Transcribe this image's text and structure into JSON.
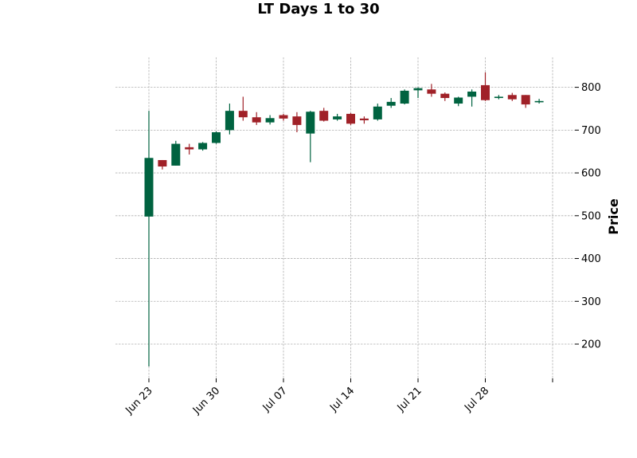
{
  "chart_data": {
    "type": "candlestick",
    "title": "LT Days 1 to 30",
    "ylabel": "Price",
    "xlabel": "",
    "ylim": [
      120,
      870
    ],
    "yticks": [
      200,
      300,
      400,
      500,
      600,
      700,
      800
    ],
    "xticks": [
      {
        "label": "Jun 23",
        "index": 0
      },
      {
        "label": "Jun 30",
        "index": 5
      },
      {
        "label": "Jul 07",
        "index": 10
      },
      {
        "label": "Jul 14",
        "index": 15
      },
      {
        "label": "Jul 21",
        "index": 20
      },
      {
        "label": "Jul 28",
        "index": 25
      },
      {
        "label": "",
        "index": 30
      }
    ],
    "grid": true,
    "colors": {
      "up": "#006340",
      "down": "#a02128"
    },
    "candles": [
      {
        "open": 498,
        "high": 745,
        "low": 148,
        "close": 635
      },
      {
        "open": 630,
        "high": 630,
        "low": 608,
        "close": 615
      },
      {
        "open": 617,
        "high": 675,
        "low": 617,
        "close": 668
      },
      {
        "open": 660,
        "high": 668,
        "low": 643,
        "close": 655
      },
      {
        "open": 655,
        "high": 672,
        "low": 652,
        "close": 670
      },
      {
        "open": 670,
        "high": 697,
        "low": 668,
        "close": 695
      },
      {
        "open": 700,
        "high": 762,
        "low": 690,
        "close": 745
      },
      {
        "open": 745,
        "high": 778,
        "low": 722,
        "close": 730
      },
      {
        "open": 730,
        "high": 742,
        "low": 712,
        "close": 718
      },
      {
        "open": 718,
        "high": 735,
        "low": 713,
        "close": 728
      },
      {
        "open": 735,
        "high": 738,
        "low": 722,
        "close": 727
      },
      {
        "open": 732,
        "high": 742,
        "low": 695,
        "close": 712
      },
      {
        "open": 692,
        "high": 745,
        "low": 625,
        "close": 743
      },
      {
        "open": 745,
        "high": 752,
        "low": 720,
        "close": 722
      },
      {
        "open": 725,
        "high": 738,
        "low": 722,
        "close": 732
      },
      {
        "open": 738,
        "high": 740,
        "low": 712,
        "close": 715
      },
      {
        "open": 727,
        "high": 732,
        "low": 715,
        "close": 723
      },
      {
        "open": 725,
        "high": 762,
        "low": 722,
        "close": 755
      },
      {
        "open": 757,
        "high": 775,
        "low": 752,
        "close": 766
      },
      {
        "open": 762,
        "high": 795,
        "low": 760,
        "close": 792
      },
      {
        "open": 793,
        "high": 800,
        "low": 775,
        "close": 798
      },
      {
        "open": 795,
        "high": 808,
        "low": 778,
        "close": 785
      },
      {
        "open": 785,
        "high": 788,
        "low": 768,
        "close": 775
      },
      {
        "open": 762,
        "high": 778,
        "low": 756,
        "close": 776
      },
      {
        "open": 778,
        "high": 795,
        "low": 755,
        "close": 790
      },
      {
        "open": 805,
        "high": 835,
        "low": 768,
        "close": 770
      },
      {
        "open": 775,
        "high": 782,
        "low": 772,
        "close": 778
      },
      {
        "open": 782,
        "high": 787,
        "low": 768,
        "close": 772
      },
      {
        "open": 782,
        "high": 782,
        "low": 752,
        "close": 760
      },
      {
        "open": 765,
        "high": 773,
        "low": 762,
        "close": 768
      }
    ]
  }
}
